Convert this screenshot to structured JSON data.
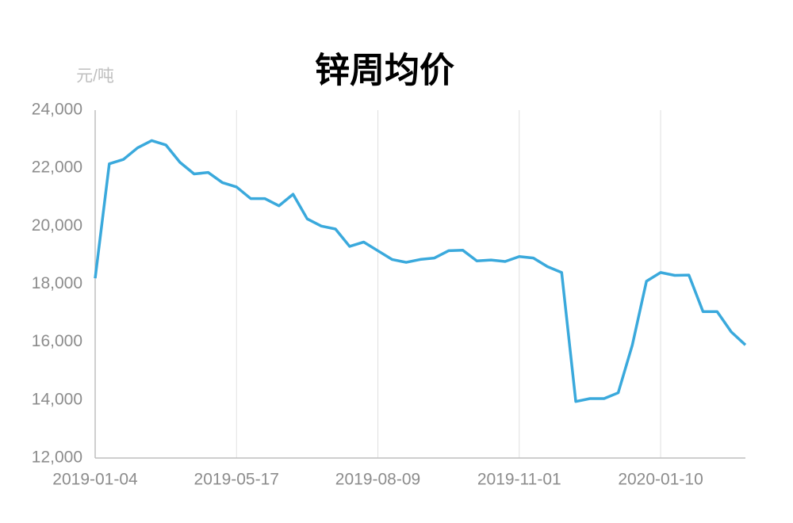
{
  "chart_data": {
    "type": "line",
    "title": "锌周均价",
    "y_unit": "元/吨",
    "categories": [
      "2019-01-04",
      null,
      null,
      null,
      null,
      null,
      null,
      null,
      null,
      null,
      "2019-05-17",
      null,
      null,
      null,
      null,
      null,
      null,
      null,
      null,
      null,
      "2019-08-09",
      null,
      null,
      null,
      null,
      null,
      null,
      null,
      null,
      null,
      "2019-11-01",
      null,
      null,
      null,
      null,
      null,
      null,
      null,
      null,
      null,
      "2020-01-10",
      null,
      null,
      null,
      null,
      null,
      null
    ],
    "series": [
      {
        "color": "#3aa9dc",
        "values": [
          18200,
          22150,
          22300,
          22700,
          22950,
          22800,
          22200,
          21800,
          21850,
          21500,
          21350,
          20950,
          20950,
          20700,
          21100,
          20250,
          20000,
          19900,
          19300,
          19450,
          19150,
          18850,
          18750,
          18850,
          18900,
          19150,
          19170,
          18800,
          18830,
          18780,
          18950,
          18900,
          18600,
          18400,
          13950,
          14050,
          14050,
          14250,
          15900,
          18100,
          18400,
          18300,
          18310,
          17050,
          17050,
          16350,
          15900
        ]
      }
    ],
    "ylim": [
      12000,
      24000
    ],
    "yticks": [
      {
        "value": 12000,
        "label": "12,000"
      },
      {
        "value": 14000,
        "label": "14,000"
      },
      {
        "value": 16000,
        "label": "16,000"
      },
      {
        "value": 18000,
        "label": "18,000"
      },
      {
        "value": 20000,
        "label": "20,000"
      },
      {
        "value": 22000,
        "label": "22,000"
      },
      {
        "value": 24000,
        "label": "24,000"
      }
    ],
    "xgrid": true
  }
}
